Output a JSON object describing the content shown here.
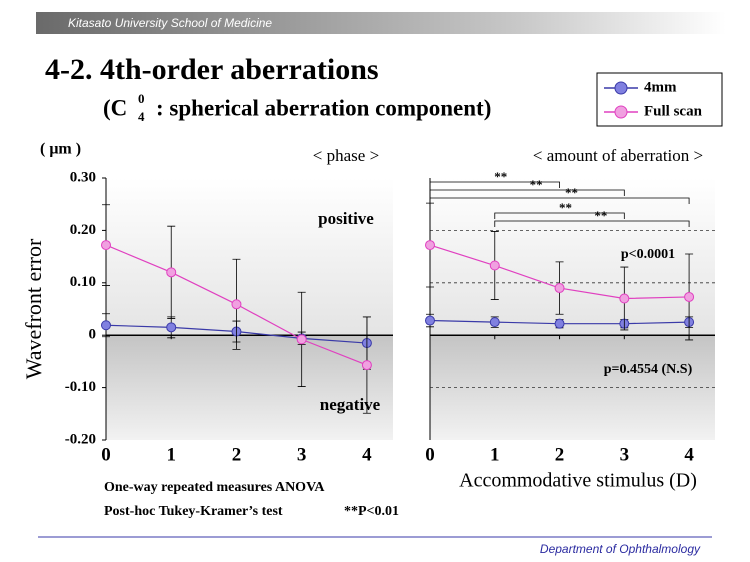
{
  "header": "Kitasato University School of Medicine",
  "title": "4-2. 4th-order aberrations",
  "subtitle": {
    "open": "(C",
    "superscript": "0",
    "subscript": "4",
    "rest": ": spherical aberration component)"
  },
  "notes": [
    "One-way repeated measures ANOVA",
    "Post-hoc  Tukey-Kramer’s test",
    "**P<0.01"
  ],
  "footer": "Department of Ophthalmology",
  "chart_data": [
    {
      "type": "line",
      "title": "< phase >",
      "ylabel": "Wavefront error",
      "yunit": "( μm )",
      "x": [
        0,
        1,
        2,
        3,
        4
      ],
      "xticks": [
        0,
        1,
        2,
        3,
        4
      ],
      "xlim": [
        0,
        4.4
      ],
      "ylim": [
        -0.2,
        0.3
      ],
      "yticks": [
        {
          "value": 0.3,
          "label": "0.30"
        },
        {
          "value": 0.2,
          "label": "0.20"
        },
        {
          "value": 0.1,
          "label": "0.10"
        },
        0,
        {
          "value": -0.1,
          "label": "-0.10"
        },
        {
          "value": -0.2,
          "label": "-0.20"
        }
      ],
      "annotations": [
        "positive",
        "negative"
      ],
      "series": [
        {
          "name": "4mm",
          "color": "#3a3aa8",
          "fill": "#8080e0",
          "values": [
            0.019,
            0.015,
            0.007,
            -0.006,
            -0.015
          ],
          "errors": [
            0.022,
            0.02,
            0.02,
            0.012,
            0.05
          ]
        },
        {
          "name": "Full scan",
          "color": "#e040c0",
          "fill": "#f0a0e0",
          "values": [
            0.172,
            0.12,
            0.059,
            -0.008,
            -0.057
          ],
          "errors": [
            0.077,
            0.088,
            0.086,
            0.09,
            0.092
          ]
        }
      ]
    },
    {
      "type": "line",
      "title": "< amount of aberration >",
      "xlabel": "Accommodative stimulus (D)",
      "x": [
        0,
        1,
        2,
        3,
        4
      ],
      "xticks": [
        0,
        1,
        2,
        3,
        4
      ],
      "xlim": [
        0,
        4.4
      ],
      "ylim": [
        -0.2,
        0.3
      ],
      "gridlines": [
        0.2,
        0.1,
        -0.1
      ],
      "annotations": [
        "p<0.0001",
        "p=0.4554 (N.S)"
      ],
      "brackets": [
        {
          "from": 0,
          "to": 2,
          "label": "**"
        },
        {
          "from": 0,
          "to": 3,
          "label": "**"
        },
        {
          "from": 0,
          "to": 4,
          "label": "**"
        },
        {
          "from": 1,
          "to": 3,
          "label": "**"
        },
        {
          "from": 1,
          "to": 4,
          "label": "**"
        }
      ],
      "series": [
        {
          "color": "#3a3aa8",
          "fill": "#8080e0",
          "values": [
            0.028,
            0.025,
            0.022,
            0.022,
            0.025
          ],
          "errors": [
            0.012,
            0.01,
            0.008,
            0.008,
            0.01
          ]
        },
        {
          "color": "#e040c0",
          "fill": "#f0a0e0",
          "values": [
            0.172,
            0.133,
            0.09,
            0.07,
            0.073
          ],
          "errors": [
            0.08,
            0.065,
            0.05,
            0.06,
            0.082
          ]
        }
      ]
    }
  ]
}
